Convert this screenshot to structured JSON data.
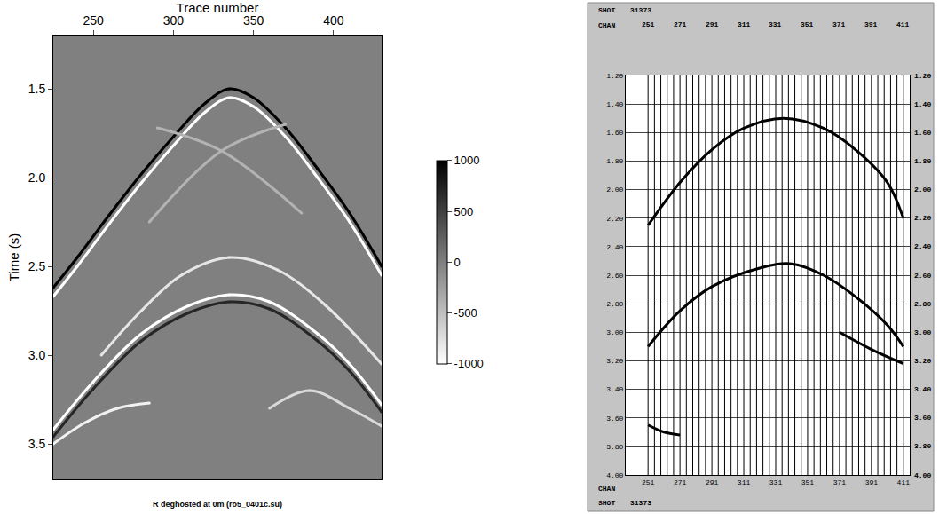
{
  "chart_data": [
    {
      "type": "image",
      "title": "R deghosted at 0m (ro5_0401c.su)",
      "x_label": "Trace number",
      "y_label": "Time (s)",
      "xlim": [
        225,
        430
      ],
      "ylim": [
        3.7,
        1.2
      ],
      "xticks": [
        250,
        300,
        350,
        400
      ],
      "yticks": [
        1.5,
        {
          "value": 2.0,
          "label": "2.0"
        },
        2.5,
        {
          "value": 3.0,
          "label": "3.0"
        },
        3.5
      ],
      "colorbar": {
        "range": [
          -1000,
          1000
        ],
        "ticks": [
          -1000,
          -500,
          0,
          500,
          1000
        ]
      },
      "series": [
        {
          "x": [
            225,
            240,
            260,
            280,
            300,
            320,
            335,
            350,
            370,
            390,
            410,
            430
          ],
          "values": [
            2.62,
            2.45,
            2.21,
            1.98,
            1.77,
            1.58,
            1.5,
            1.55,
            1.72,
            1.95,
            2.2,
            2.5
          ],
          "amplitude": 1000
        },
        {
          "x": [
            225,
            240,
            260,
            280,
            300,
            320,
            335,
            350,
            370,
            390,
            410,
            430
          ],
          "values": [
            2.67,
            2.5,
            2.26,
            2.03,
            1.82,
            1.63,
            1.55,
            1.6,
            1.77,
            2.0,
            2.25,
            2.55
          ],
          "amplitude": -1000
        },
        {
          "x": [
            255,
            280,
            305,
            335,
            365,
            395,
            430
          ],
          "values": [
            3.0,
            2.75,
            2.55,
            2.45,
            2.52,
            2.72,
            3.05
          ],
          "amplitude": -800
        },
        {
          "x": [
            225,
            250,
            280,
            310,
            335,
            360,
            390,
            410,
            430
          ],
          "values": [
            3.42,
            3.15,
            2.88,
            2.72,
            2.66,
            2.7,
            2.88,
            3.05,
            3.28
          ],
          "amplitude": -1000
        },
        {
          "x": [
            225,
            250,
            280,
            310,
            335,
            360,
            390,
            410,
            430
          ],
          "values": [
            3.46,
            3.19,
            2.92,
            2.76,
            2.7,
            2.74,
            2.92,
            3.09,
            3.32
          ],
          "amplitude": 700
        },
        {
          "x": [
            225,
            245,
            265,
            285
          ],
          "values": [
            3.5,
            3.38,
            3.3,
            3.27
          ],
          "amplitude": -900
        },
        {
          "x": [
            360,
            385,
            410,
            430
          ],
          "values": [
            3.3,
            3.2,
            3.3,
            3.4
          ],
          "amplitude": -700
        },
        {
          "x": [
            290,
            330,
            380
          ],
          "values": [
            1.72,
            1.85,
            2.2
          ],
          "amplitude": -400
        },
        {
          "x": [
            370,
            330,
            285
          ],
          "values": [
            1.7,
            1.85,
            2.25
          ],
          "amplitude": -400
        }
      ]
    },
    {
      "type": "wiggle",
      "shot_label": "SHOT",
      "shot": "31373",
      "channel_label": "CHAN",
      "color": "#000000",
      "xlim": [
        237,
        415
      ],
      "ylim": [
        4.0,
        1.2
      ],
      "xticks": [
        251,
        271,
        291,
        311,
        331,
        351,
        371,
        391,
        411
      ],
      "yticks": [
        {
          "value": 1.2,
          "label": "1.20"
        },
        {
          "value": 1.4,
          "label": "1.40"
        },
        {
          "value": 1.6,
          "label": "1.60"
        },
        {
          "value": 1.8,
          "label": "1.80"
        },
        {
          "value": 2.0,
          "label": "2.00"
        },
        {
          "value": 2.2,
          "label": "2.20"
        },
        {
          "value": 2.4,
          "label": "2.40"
        },
        {
          "value": 2.6,
          "label": "2.60"
        },
        {
          "value": 2.8,
          "label": "2.80"
        },
        {
          "value": 3.0,
          "label": "3.00"
        },
        {
          "value": 3.2,
          "label": "3.20"
        },
        {
          "value": 3.4,
          "label": "3.40"
        },
        {
          "value": 3.6,
          "label": "3.60"
        },
        {
          "value": 3.8,
          "label": "3.80"
        },
        {
          "value": 4.0,
          "label": "4.00"
        }
      ],
      "grid": true,
      "channels": [
        251,
        255,
        259,
        263,
        267,
        271,
        275,
        279,
        283,
        287,
        291,
        295,
        299,
        303,
        307,
        311,
        315,
        319,
        323,
        327,
        331,
        335,
        339,
        343,
        347,
        351,
        355,
        359,
        363,
        367,
        371,
        375,
        379,
        383,
        387,
        391,
        395,
        399,
        403,
        407,
        411
      ],
      "series": [
        {
          "x": [
            251,
            271,
            291,
            311,
            336,
            361,
            381,
            401,
            411
          ],
          "values": [
            2.25,
            1.95,
            1.72,
            1.57,
            1.5,
            1.57,
            1.72,
            1.95,
            2.2
          ]
        },
        {
          "x": [
            251,
            271,
            291,
            321,
            341,
            361,
            381,
            401,
            411
          ],
          "values": [
            3.1,
            2.85,
            2.68,
            2.55,
            2.52,
            2.6,
            2.75,
            2.95,
            3.1
          ]
        },
        {
          "x": [
            371,
            391,
            411
          ],
          "values": [
            3.0,
            3.12,
            3.22
          ]
        },
        {
          "x": [
            251,
            261,
            271
          ],
          "values": [
            3.65,
            3.7,
            3.72
          ]
        }
      ]
    }
  ]
}
